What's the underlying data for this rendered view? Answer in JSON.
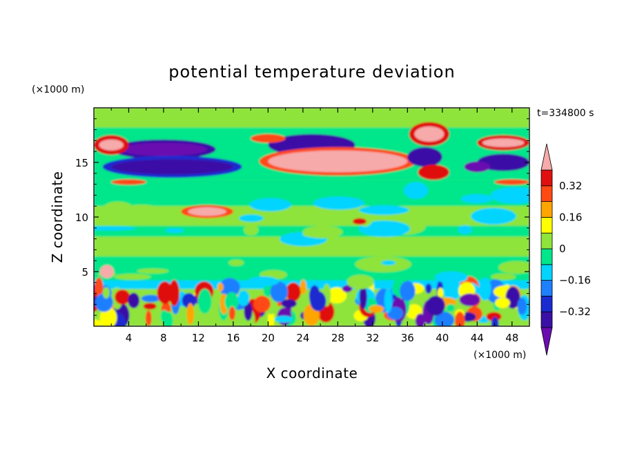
{
  "chart_data": {
    "type": "heatmap",
    "title": "potential temperature deviation",
    "xlabel": "X coordinate",
    "ylabel": "Z coordinate",
    "x_unit": "(×1000 m)",
    "y_unit": "(×1000 m)",
    "time_label": "t=334800 s",
    "xlim": [
      0,
      50
    ],
    "ylim": [
      0,
      20
    ],
    "x_ticks": [
      4,
      8,
      12,
      16,
      20,
      24,
      28,
      32,
      36,
      40,
      44,
      48
    ],
    "y_ticks": [
      5,
      10,
      15
    ],
    "colorbar": {
      "levels": [
        -0.4,
        -0.32,
        -0.24,
        -0.16,
        -0.08,
        0,
        0.08,
        0.16,
        0.24,
        0.32,
        0.4
      ],
      "tick_labels": [
        {
          "value": 0.32,
          "label": "0.32"
        },
        {
          "value": 0.16,
          "label": "0.16"
        },
        {
          "value": 0,
          "label": "0"
        },
        {
          "value": -0.16,
          "label": "−0.16"
        },
        {
          "value": -0.32,
          "label": "−0.32"
        }
      ],
      "colors_low_to_high": [
        "#6a0db0",
        "#3a10a6",
        "#1a2bd0",
        "#1e7fff",
        "#00d4ff",
        "#00e68a",
        "#8ee43a",
        "#ffff00",
        "#ffa500",
        "#ff4a14",
        "#e01010",
        "#f6aaaa"
      ]
    }
  }
}
